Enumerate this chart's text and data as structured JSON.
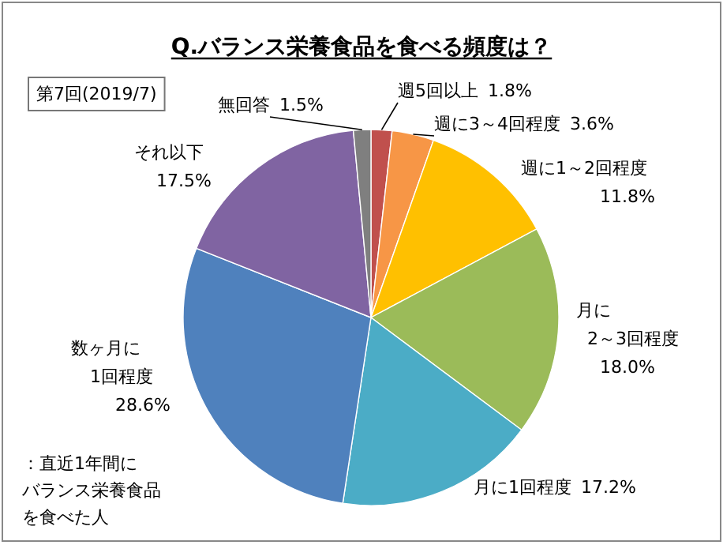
{
  "chart_data": {
    "type": "pie",
    "title": "Q.バランス栄養食品を食べる頻度は？",
    "subtitle": "第7回(2019/7)",
    "categories": [
      "週5回以上",
      "週に3～4回程度",
      "週に1～2回程度",
      "月に2～3回程度",
      "月に1回程度",
      "数ヶ月に1回程度",
      "それ以下",
      "無回答"
    ],
    "values": [
      1.8,
      3.6,
      11.8,
      18.0,
      17.2,
      28.6,
      17.5,
      1.5
    ],
    "colors": [
      "#c0504d",
      "#f79646",
      "#ffc000",
      "#9bbb59",
      "#4bacc6",
      "#4f81bd",
      "#8064a2",
      "#7f7f7f"
    ],
    "value_labels": [
      "1.8%",
      "3.6%",
      "11.8%",
      "18.0%",
      "17.2%",
      "28.6%",
      "17.5%",
      "1.5%"
    ],
    "annotations": [
      "：直近1年間にバランス栄養食品を食べた人"
    ]
  }
}
